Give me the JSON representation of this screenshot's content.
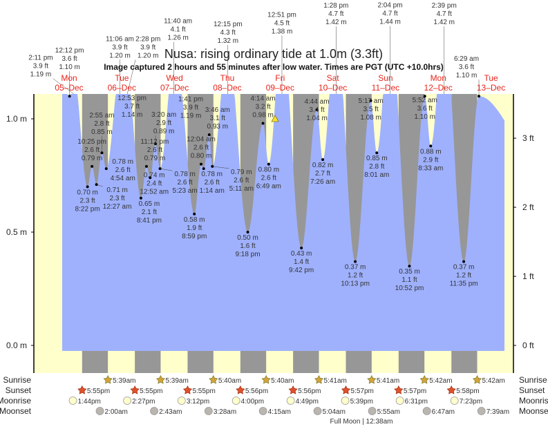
{
  "title": "Nusa: rising  ordinary tide at 1.0m (3.3ft)",
  "subtitle": "Image captured 2 hours and 55 minutes after low water. Times are PGT (UTC +10.0hrs)",
  "colors": {
    "water": "#9fb1fd",
    "day": "#ffffcc",
    "night": "#979797",
    "day_label": "#e8241a",
    "sunrise": "#d4a33c",
    "sunset": "#e0522a",
    "moonrise": "#ffffcc",
    "moonset": "#bbb5b0"
  },
  "chart_data": {
    "type": "area",
    "title": "Nusa: rising  ordinary tide at 1.0m (3.3ft)",
    "ylim_m": [
      -0.12,
      1.11
    ],
    "left_ticks": [
      "0.0 m",
      "0.5 m",
      "1.0 m"
    ],
    "left_tick_values": [
      0.0,
      0.5,
      1.0
    ],
    "right_ticks": [
      "0 ft",
      "1 ft",
      "2 ft",
      "3 ft"
    ],
    "right_tick_values": [
      0,
      1,
      2,
      3
    ],
    "days": [
      {
        "name": "Mon",
        "date": "05–Dec"
      },
      {
        "name": "Tue",
        "date": "06–Dec"
      },
      {
        "name": "Wed",
        "date": "07–Dec"
      },
      {
        "name": "Thu",
        "date": "08–Dec"
      },
      {
        "name": "Fri",
        "date": "09–Dec"
      },
      {
        "name": "Sat",
        "date": "10–Dec"
      },
      {
        "name": "Sun",
        "date": "11–Dec"
      },
      {
        "name": "Mon",
        "date": "12–Dec"
      },
      {
        "name": "Tue",
        "date": "13–Dec"
      }
    ],
    "tides": [
      {
        "day": 0,
        "time": "12:12 pm",
        "ft": "3.6 ft",
        "m": 1.1,
        "type": "high"
      },
      {
        "day": 0,
        "time": "2:11 pm",
        "ft": "3.9 ft",
        "m": 1.19,
        "type": "high"
      },
      {
        "day": 0,
        "time": "8:22 pm",
        "ft": "2.3 ft",
        "m": 0.7,
        "type": "low"
      },
      {
        "day": 0,
        "time": "10:25 pm",
        "ft": "2.6 ft",
        "m": 0.79,
        "type": "high"
      },
      {
        "day": 1,
        "time": "12:27 am",
        "ft": "2.3 ft",
        "m": 0.71,
        "type": "low"
      },
      {
        "day": 1,
        "time": "2:55 am",
        "ft": "2.8 ft",
        "m": 0.85,
        "type": "high"
      },
      {
        "day": 1,
        "time": "4:54 am",
        "ft": "2.6 ft",
        "m": 0.78,
        "type": "low"
      },
      {
        "day": 1,
        "time": "11:06 am",
        "ft": "3.9 ft",
        "m": 1.2,
        "type": "high"
      },
      {
        "day": 1,
        "time": "12:53 pm",
        "ft": "3.7 ft",
        "m": 1.14,
        "type": "low"
      },
      {
        "day": 1,
        "time": "2:28 pm",
        "ft": "3.9 ft",
        "m": 1.2,
        "type": "high"
      },
      {
        "day": 1,
        "time": "8:41 pm",
        "ft": "2.1 ft",
        "m": 0.65,
        "type": "low"
      },
      {
        "day": 1,
        "time": "11:12 pm",
        "ft": "2.6 ft",
        "m": 0.79,
        "type": "high"
      },
      {
        "day": 2,
        "time": "12:52 am",
        "ft": "2.4 ft",
        "m": 0.74,
        "type": "low"
      },
      {
        "day": 2,
        "time": "3:20 am",
        "ft": "2.9 ft",
        "m": 0.89,
        "type": "high"
      },
      {
        "day": 2,
        "time": "5:23 am",
        "ft": "2.6 ft",
        "m": 0.78,
        "type": "low"
      },
      {
        "day": 2,
        "time": "11:40 am",
        "ft": "4.1 ft",
        "m": 1.26,
        "type": "high"
      },
      {
        "day": 2,
        "time": "1:41 pm",
        "ft": "3.9 ft",
        "m": 1.19,
        "type": "low"
      },
      {
        "day": 2,
        "time": "8:59 pm",
        "ft": "1.9 ft",
        "m": 0.58,
        "type": "low"
      },
      {
        "day": 3,
        "time": "12:04 am",
        "ft": "2.6 ft",
        "m": 0.8,
        "type": "high"
      },
      {
        "day": 3,
        "time": "1:14 am",
        "ft": "2.6 ft",
        "m": 0.78,
        "type": "low"
      },
      {
        "day": 3,
        "time": "3:46 am",
        "ft": "3.1 ft",
        "m": 0.93,
        "type": "high"
      },
      {
        "day": 3,
        "time": "5:11 am",
        "ft": "2.6 ft",
        "m": 0.79,
        "type": "low"
      },
      {
        "day": 3,
        "time": "12:15 pm",
        "ft": "4.3 ft",
        "m": 1.32,
        "type": "high"
      },
      {
        "day": 3,
        "time": "9:18 pm",
        "ft": "1.6 ft",
        "m": 0.5,
        "type": "low"
      },
      {
        "day": 4,
        "time": "4:14 am",
        "ft": "3.2 ft",
        "m": 0.98,
        "type": "high"
      },
      {
        "day": 4,
        "time": "6:49 am",
        "ft": "2.6 ft",
        "m": 0.8,
        "type": "low"
      },
      {
        "day": 4,
        "time": "12:51 pm",
        "ft": "4.5 ft",
        "m": 1.38,
        "type": "high"
      },
      {
        "day": 4,
        "time": "9:42 pm",
        "ft": "1.4 ft",
        "m": 0.43,
        "type": "low"
      },
      {
        "day": 5,
        "time": "4:44 am",
        "ft": "3.4 ft",
        "m": 1.04,
        "type": "high"
      },
      {
        "day": 5,
        "time": "7:26 am",
        "ft": "2.7 ft",
        "m": 0.82,
        "type": "low"
      },
      {
        "day": 5,
        "time": "1:28 pm",
        "ft": "4.7 ft",
        "m": 1.42,
        "type": "high"
      },
      {
        "day": 5,
        "time": "10:13 pm",
        "ft": "1.2 ft",
        "m": 0.37,
        "type": "low"
      },
      {
        "day": 6,
        "time": "5:17 am",
        "ft": "3.5 ft",
        "m": 1.08,
        "type": "high"
      },
      {
        "day": 6,
        "time": "8:01 am",
        "ft": "2.8 ft",
        "m": 0.85,
        "type": "low"
      },
      {
        "day": 6,
        "time": "2:04 pm",
        "ft": "4.7 ft",
        "m": 1.44,
        "type": "high"
      },
      {
        "day": 6,
        "time": "10:52 pm",
        "ft": "1.1 ft",
        "m": 0.35,
        "type": "low"
      },
      {
        "day": 7,
        "time": "5:52 am",
        "ft": "3.6 ft",
        "m": 1.1,
        "type": "high"
      },
      {
        "day": 7,
        "time": "8:33 am",
        "ft": "2.9 ft",
        "m": 0.88,
        "type": "low"
      },
      {
        "day": 7,
        "time": "2:39 pm",
        "ft": "4.7 ft",
        "m": 1.42,
        "type": "high"
      },
      {
        "day": 7,
        "time": "11:35 pm",
        "ft": "1.2 ft",
        "m": 0.37,
        "type": "low"
      },
      {
        "day": 8,
        "time": "6:29 am",
        "ft": "3.6 ft",
        "m": 1.1,
        "type": "high"
      }
    ],
    "current": {
      "day": 4,
      "time": "9:44 am",
      "m": 1.0
    }
  },
  "rows": {
    "sunrise": {
      "label": "Sunrise",
      "times": [
        "5:39am",
        "5:39am",
        "5:40am",
        "5:40am",
        "5:41am",
        "5:41am",
        "5:42am",
        "5:42am"
      ],
      "start_day": 1
    },
    "sunset": {
      "label": "Sunset",
      "times": [
        "5:55pm",
        "5:55pm",
        "5:55pm",
        "5:56pm",
        "5:56pm",
        "5:57pm",
        "5:57pm",
        "5:58pm"
      ],
      "start_day": 0
    },
    "moonrise": {
      "label": "Moonrise",
      "times": [
        "1:44pm",
        "2:27pm",
        "3:12pm",
        "4:00pm",
        "4:49pm",
        "5:39pm",
        "6:31pm",
        "7:23pm"
      ],
      "start_day": 0
    },
    "moonset": {
      "label": "Moonset",
      "times": [
        "2:00am",
        "2:43am",
        "3:28am",
        "4:15am",
        "5:04am",
        "5:55am",
        "6:47am",
        "7:39am"
      ],
      "start_day": 1
    }
  },
  "moon_phase": "Full Moon | 12:38am"
}
